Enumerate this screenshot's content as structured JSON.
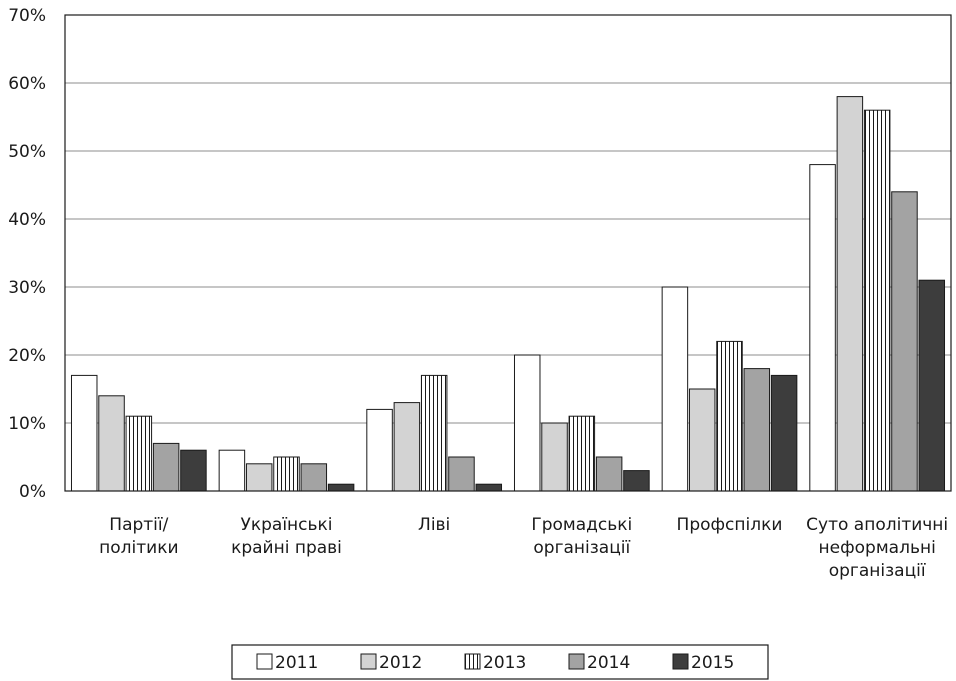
{
  "chart_data": {
    "type": "bar",
    "categories": [
      [
        "Партії/",
        "політики"
      ],
      [
        "Українські",
        "крайні праві"
      ],
      [
        "Ліві"
      ],
      [
        "Громадські",
        "організації"
      ],
      [
        "Профспілки"
      ],
      [
        "Суто аполітичні",
        "неформальні",
        "організації"
      ]
    ],
    "series": [
      {
        "name": "2011",
        "fill": "white",
        "values": [
          17,
          6,
          12,
          20,
          30,
          48
        ]
      },
      {
        "name": "2012",
        "fill": "#d3d3d3",
        "values": [
          14,
          4,
          13,
          10,
          15,
          58
        ]
      },
      {
        "name": "2013",
        "fill": "stripes",
        "values": [
          11,
          5,
          17,
          11,
          22,
          56
        ]
      },
      {
        "name": "2014",
        "fill": "#a3a3a3",
        "values": [
          7,
          4,
          5,
          5,
          18,
          44
        ]
      },
      {
        "name": "2015",
        "fill": "#3d3d3d",
        "values": [
          6,
          1,
          1,
          3,
          17,
          31
        ]
      }
    ],
    "ylim": [
      0,
      70
    ],
    "yticks": [
      "0%",
      "10%",
      "20%",
      "30%",
      "40%",
      "50%",
      "60%",
      "70%"
    ],
    "grid": true,
    "legend": "bottom"
  }
}
